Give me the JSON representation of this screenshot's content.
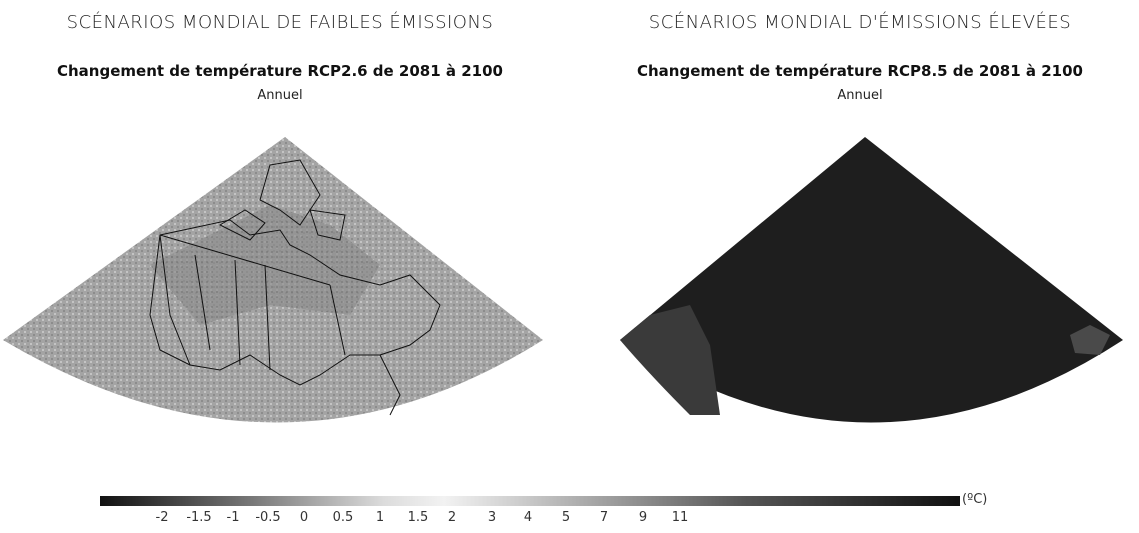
{
  "left": {
    "scenario": "SCÉNARIOS MONDIAL DE FAIBLES ÉMISSIONS",
    "map_title": "Changement de température RCP2.6 de 2081 à 2100",
    "period": "Annuel"
  },
  "right": {
    "scenario": "SCÉNARIOS MONDIAL D'ÉMISSIONS ÉLEVÉES",
    "map_title": "Changement de température RCP8.5 de 2081 à 2100",
    "period": "Annuel"
  },
  "legend": {
    "unit": "(ºC)",
    "ticks": [
      "-2",
      "-1.5",
      "-1",
      "-0.5",
      "0",
      "0.5",
      "1",
      "1.5",
      "2",
      "3",
      "4",
      "5",
      "7",
      "9",
      "11"
    ]
  },
  "colors": {
    "map_low": "#a8a8a8",
    "map_mid": "#8a8a8a",
    "map_high": "#1c1c1c",
    "boundary": "#111111"
  }
}
